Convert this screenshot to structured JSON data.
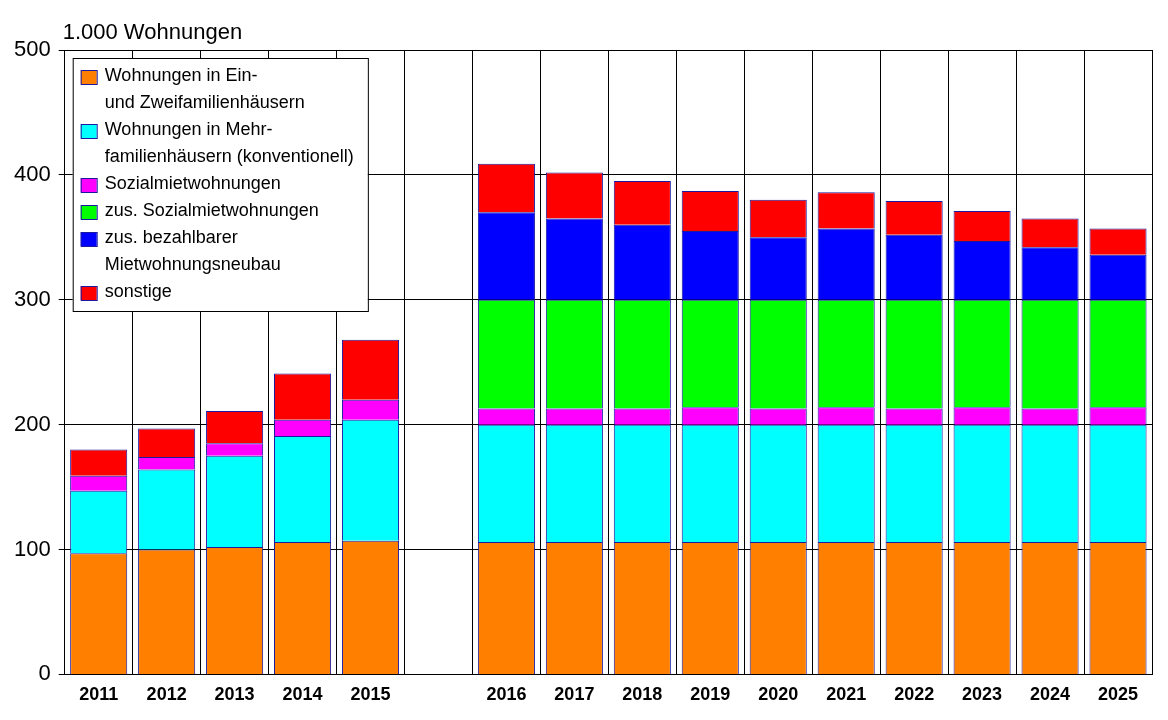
{
  "chart_data": {
    "type": "bar",
    "stacked": true,
    "y_label": "1.000 Wohnungen",
    "categories": [
      "2011",
      "2012",
      "2013",
      "2014",
      "2015",
      null,
      "2016",
      "2017",
      "2018",
      "2019",
      "2020",
      "2021",
      "2022",
      "2023",
      "2024",
      "2025"
    ],
    "ylim": [
      0,
      500
    ],
    "yticks": [
      0,
      100,
      200,
      300,
      400,
      500
    ],
    "grid": true,
    "legend": "top-left",
    "series": [
      {
        "name": "Wohnungen in Ein-\nund Zweifamilienhäusern",
        "color": "#ff8000",
        "values": [
          97,
          100,
          102,
          106,
          107,
          null,
          106,
          106,
          106,
          106,
          106,
          106,
          106,
          106,
          106,
          106
        ]
      },
      {
        "name": "Wohnungen in Mehr-\nfamilienhäusern (konventionell)",
        "color": "#00ffff",
        "values": [
          50,
          64,
          73,
          85,
          97,
          null,
          94,
          94,
          94,
          94,
          94,
          94,
          94,
          94,
          94,
          94
        ]
      },
      {
        "name": "Sozialmietwohnungen",
        "color": "#ff00ff",
        "values": [
          12,
          10,
          10,
          13,
          16,
          null,
          13,
          13,
          13,
          14,
          13,
          14,
          13,
          14,
          13,
          14
        ]
      },
      {
        "name": "zus. Sozialmietwohnungen",
        "color": "#00ff00",
        "values": [
          null,
          null,
          null,
          null,
          null,
          null,
          87,
          87,
          87,
          86,
          87,
          86,
          87,
          86,
          87,
          86
        ]
      },
      {
        "name": "zus. bezahlbarer\nMietwohnungsneubau",
        "color": "#0000ff",
        "values": [
          null,
          null,
          null,
          null,
          null,
          null,
          70,
          65,
          60,
          55,
          50,
          57,
          52,
          47,
          42,
          36
        ]
      },
      {
        "name": "sonstige",
        "color": "#ff0000",
        "values": [
          21,
          23,
          26,
          37,
          48,
          null,
          39,
          37,
          35,
          32,
          30,
          29,
          27,
          24,
          23,
          21
        ]
      }
    ]
  }
}
